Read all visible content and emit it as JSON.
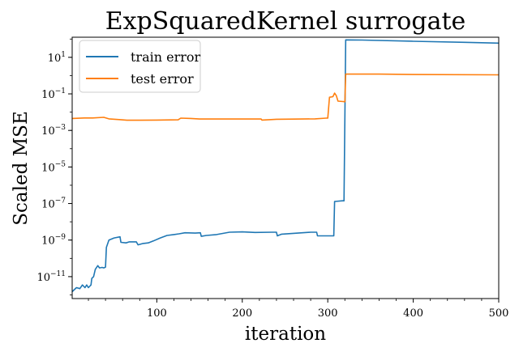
{
  "chart_data": {
    "type": "line",
    "title": "ExpSquaredKernel surrogate",
    "xlabel": "iteration",
    "ylabel": "Scaled MSE",
    "xlim": [
      1,
      500
    ],
    "ylim_log10": [
      -12.2,
      2.1
    ],
    "y_scale": "log",
    "x_ticks": [
      100,
      200,
      300,
      400,
      500
    ],
    "y_ticks": [
      {
        "value": 1e-11,
        "base": "10",
        "exp": "−11"
      },
      {
        "value": 1e-09,
        "base": "10",
        "exp": "−9"
      },
      {
        "value": 1e-07,
        "base": "10",
        "exp": "−7"
      },
      {
        "value": 1e-05,
        "base": "10",
        "exp": "−5"
      },
      {
        "value": 0.001,
        "base": "10",
        "exp": "−3"
      },
      {
        "value": 0.1,
        "base": "10",
        "exp": "−1"
      },
      {
        "value": 10,
        "base": "10",
        "exp": "1"
      }
    ],
    "grid": false,
    "legend_position": "top-left",
    "series": [
      {
        "name": "train error",
        "color": "#1f77b4",
        "points": [
          [
            1,
            1.5e-12
          ],
          [
            6,
            2.5e-12
          ],
          [
            10,
            2.2e-12
          ],
          [
            13,
            3.5e-12
          ],
          [
            16,
            2.5e-12
          ],
          [
            18,
            3.5e-12
          ],
          [
            20,
            2.5e-12
          ],
          [
            23,
            3.5e-12
          ],
          [
            24,
            8e-12
          ],
          [
            26,
            1e-11
          ],
          [
            28,
            2.5e-11
          ],
          [
            31,
            4e-11
          ],
          [
            33,
            3e-11
          ],
          [
            36,
            3.2e-11
          ],
          [
            38,
            3e-11
          ],
          [
            40,
            3.3e-11
          ],
          [
            41,
            4e-10
          ],
          [
            44,
            1e-09
          ],
          [
            50,
            1.3e-09
          ],
          [
            57,
            1.5e-09
          ],
          [
            58,
            7.5e-10
          ],
          [
            64,
            7e-10
          ],
          [
            68,
            8e-10
          ],
          [
            76,
            8e-10
          ],
          [
            78,
            5.5e-10
          ],
          [
            84,
            6.5e-10
          ],
          [
            90,
            7e-10
          ],
          [
            96,
            9e-10
          ],
          [
            104,
            1.3e-09
          ],
          [
            112,
            1.8e-09
          ],
          [
            120,
            2e-09
          ],
          [
            126,
            2.2e-09
          ],
          [
            133,
            2.5e-09
          ],
          [
            145,
            2.4e-09
          ],
          [
            151,
            2.5e-09
          ],
          [
            152,
            1.6e-09
          ],
          [
            158,
            1.8e-09
          ],
          [
            170,
            2e-09
          ],
          [
            185,
            2.7e-09
          ],
          [
            200,
            2.8e-09
          ],
          [
            215,
            2.6e-09
          ],
          [
            235,
            2.7e-09
          ],
          [
            240,
            2.7e-09
          ],
          [
            241,
            1.7e-09
          ],
          [
            246,
            2.1e-09
          ],
          [
            265,
            2.4e-09
          ],
          [
            280,
            2.7e-09
          ],
          [
            287,
            2.7e-09
          ],
          [
            288,
            1.7e-09
          ],
          [
            296,
            1.7e-09
          ],
          [
            307,
            1.7e-09
          ],
          [
            308,
            1.3e-07
          ],
          [
            317,
            1.4e-07
          ],
          [
            319,
            1.4e-07
          ],
          [
            321,
            90
          ],
          [
            340,
            88
          ],
          [
            400,
            76
          ],
          [
            460,
            66
          ],
          [
            500,
            60
          ]
        ]
      },
      {
        "name": "test error",
        "color": "#ff7f0e",
        "points": [
          [
            1,
            0.0045
          ],
          [
            15,
            0.0048
          ],
          [
            25,
            0.0048
          ],
          [
            38,
            0.0052
          ],
          [
            44,
            0.0043
          ],
          [
            56,
            0.0039
          ],
          [
            65,
            0.0036
          ],
          [
            80,
            0.0036
          ],
          [
            100,
            0.0037
          ],
          [
            125,
            0.0038
          ],
          [
            128,
            0.0047
          ],
          [
            140,
            0.0045
          ],
          [
            150,
            0.0042
          ],
          [
            200,
            0.0042
          ],
          [
            222,
            0.0042
          ],
          [
            223,
            0.0037
          ],
          [
            240,
            0.0041
          ],
          [
            270,
            0.0042
          ],
          [
            285,
            0.0043
          ],
          [
            298,
            0.0047
          ],
          [
            300,
            0.0047
          ],
          [
            302,
            0.065
          ],
          [
            306,
            0.07
          ],
          [
            308,
            0.11
          ],
          [
            310,
            0.08
          ],
          [
            312,
            0.04
          ],
          [
            318,
            0.038
          ],
          [
            320,
            0.037
          ],
          [
            321,
            1.2
          ],
          [
            360,
            1.2
          ],
          [
            400,
            1.15
          ],
          [
            500,
            1.1
          ]
        ]
      }
    ]
  }
}
